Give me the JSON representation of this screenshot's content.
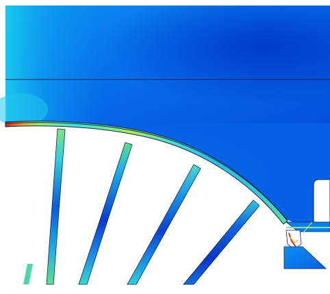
{
  "viewport": {
    "label": "",
    "colors": {
      "deep_blue": "#0038d0",
      "blue": "#0066ee",
      "light_blue": "#0a8ff5",
      "cyan": "#22d6e6",
      "green": "#8fe86a",
      "yellow": "#e8e84a",
      "red": "#c8241a",
      "white": "#ffffff",
      "outline": "#0b2550"
    },
    "icons": [
      "fea-stress-contour"
    ]
  }
}
